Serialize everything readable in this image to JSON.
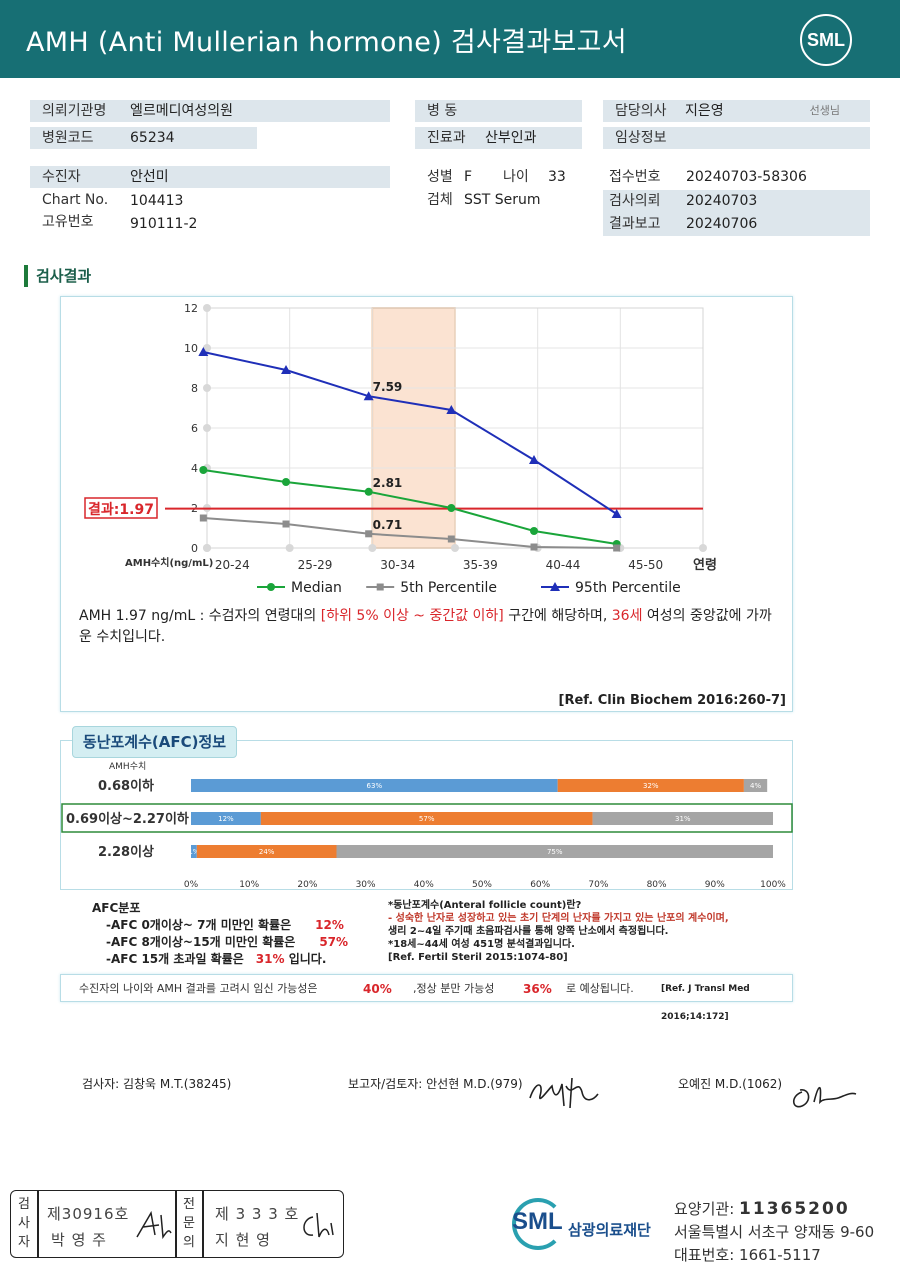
{
  "header": {
    "title": "AMH (Anti Mullerian hormone) 검사결과보고서",
    "logo": "SML"
  },
  "info": {
    "request_org_label": "의뢰기관명",
    "request_org": "엘르메디여성의원",
    "hosp_code_label": "병원코드",
    "hosp_code": "65234",
    "ward_label": "병 동",
    "ward": "",
    "dept_label": "진료과",
    "dept": "산부인과",
    "doctor_label": "담당의사",
    "doctor": "지은영",
    "doctor_suffix": "선생님",
    "clinical_label": "임상정보",
    "clinical": "",
    "patient_label": "수진자",
    "patient": "안선미",
    "chart_no_label": "Chart No.",
    "chart_no": "104413",
    "unique_no_label": "고유번호",
    "unique_no": "910111-2",
    "sex_label": "성별",
    "sex": "F",
    "age_label": "나이",
    "age": "33",
    "specimen_label": "검체",
    "specimen": "SST Serum",
    "receipt_label": "접수번호",
    "receipt": "20240703-58306",
    "test_request_label": "검사의뢰",
    "test_request": "20240703",
    "result_report_label": "결과보고",
    "result_report": "20240706"
  },
  "results_section": {
    "title": "검사결과"
  },
  "chart_data": {
    "type": "line",
    "categories": [
      "20-24",
      "25-29",
      "30-34",
      "35-39",
      "40-44",
      "45-50"
    ],
    "x_unit_label": "연령",
    "y_axis_label": "AMH수치(ng/mL)",
    "ylim": [
      0,
      12
    ],
    "yticks": [
      0,
      2,
      4,
      6,
      8,
      10,
      12
    ],
    "grid": true,
    "highlight_category": "30-34",
    "series": [
      {
        "name": "Median",
        "color": "#1aa53a",
        "marker": "circle",
        "values": [
          3.9,
          3.3,
          2.81,
          2.0,
          0.85,
          0.2
        ]
      },
      {
        "name": "5th Percentile",
        "color": "#8c8c8c",
        "marker": "square",
        "values": [
          1.5,
          1.2,
          0.71,
          0.45,
          0.05,
          0.0
        ]
      },
      {
        "name": "95th Percentile",
        "color": "#1f2fb8",
        "marker": "triangle",
        "values": [
          9.8,
          8.9,
          7.59,
          6.9,
          4.4,
          1.7
        ]
      }
    ],
    "data_labels": [
      {
        "series": "95th Percentile",
        "category": "30-34",
        "text": "7.59"
      },
      {
        "series": "Median",
        "category": "30-34",
        "text": "2.81"
      },
      {
        "series": "5th Percentile",
        "category": "30-34",
        "text": "0.71"
      }
    ],
    "result_line": {
      "value": 1.97,
      "label": "결과:1.97",
      "color": "#d9262b"
    },
    "legend_placement": "bottom"
  },
  "interpretation": {
    "part1": "AMH  1.97 ng/mL : 수검자의 연령대의 ",
    "range": "[하위 5% 이상 ~ 중간값 이하]",
    "part2": "  구간에 해당하며, ",
    "age_eq": "36세",
    "part3": " 여성의 중앙값에 가까운 수치입니다.",
    "ref": "[Ref. Clin Biochem 2016:260-7]"
  },
  "afc": {
    "tab_title": "동난포계수(AFC)정보",
    "axis_label": "AMH수치",
    "rows": [
      {
        "label": "0.68이하",
        "values": [
          63,
          32,
          4
        ],
        "texts": [
          "63%",
          "32%",
          "4%"
        ],
        "highlight": false
      },
      {
        "label": "0.69이상~2.27이하",
        "values": [
          12,
          57,
          31
        ],
        "texts": [
          "12%",
          "57%",
          "31%"
        ],
        "highlight": true
      },
      {
        "label": "2.28이상",
        "values": [
          1,
          24,
          75
        ],
        "texts": [
          "1%",
          "24%",
          "75%"
        ],
        "highlight": false
      }
    ],
    "colors": [
      "#5b9bd5",
      "#ed7d31",
      "#a5a5a5"
    ],
    "xticks": [
      "0%",
      "10%",
      "20%",
      "30%",
      "40%",
      "50%",
      "60%",
      "70%",
      "80%",
      "90%",
      "100%"
    ],
    "summary_title": "AFC분포",
    "summary": [
      {
        "text": "-AFC  0개이상~ 7개 미만인 확률은",
        "pct": "12%",
        "tail": ""
      },
      {
        "text": "-AFC  8개이상~15개 미만인 확률은",
        "pct": "57%",
        "tail": ""
      },
      {
        "text": "-AFC  15개 초과일 확률은",
        "pct": "31%",
        "tail": " 입니다."
      }
    ],
    "def_lines": [
      "*동난포계수(Anteral  follicle  count)란?",
      "- 성숙한 난자로 성장하고 있는 초기 단계의 난자를 가지고 있는 난포의 계수이며,",
      "  생리 2~4일 주기때 초음파검사를 통해 양쪽 난소에서 측정됩니다.",
      "*18세~44세 여성 451명 분석결과입니다.",
      "[Ref. Fertil Steril 2015:1074-80]"
    ]
  },
  "prediction": {
    "part1": "수진자의  나이와 AMH 결과를 고려시 임신 가능성은",
    "pregnancy": "40%",
    "part2": ",정상 분만 가능성",
    "delivery": "36%",
    "part3": "로 예상됩니다.",
    "ref": "[Ref. J Transl Med 2016;14:172]"
  },
  "signatures": {
    "tester": "검사자: 김창욱 M.T.(38245)",
    "reporter": "보고자/검토자: 안선현 M.D.(979)",
    "doctor2": "오예진 M.D.(1062)"
  },
  "stamp": {
    "col1": [
      "검",
      "사",
      "자"
    ],
    "num1": "제30916호",
    "name1": "박  영  주",
    "col2": [
      "전",
      "문",
      "의"
    ],
    "num2": "제 3 3 3 호",
    "name2": "지  현  영"
  },
  "org": {
    "logo": "SML",
    "name": "삼광의료재단",
    "code_label": "요양기관: ",
    "code": "11365200",
    "address": "서울특별시 서초구 양재동 9-60",
    "phone_label": "대표번호: ",
    "phone": "1661-5117"
  }
}
